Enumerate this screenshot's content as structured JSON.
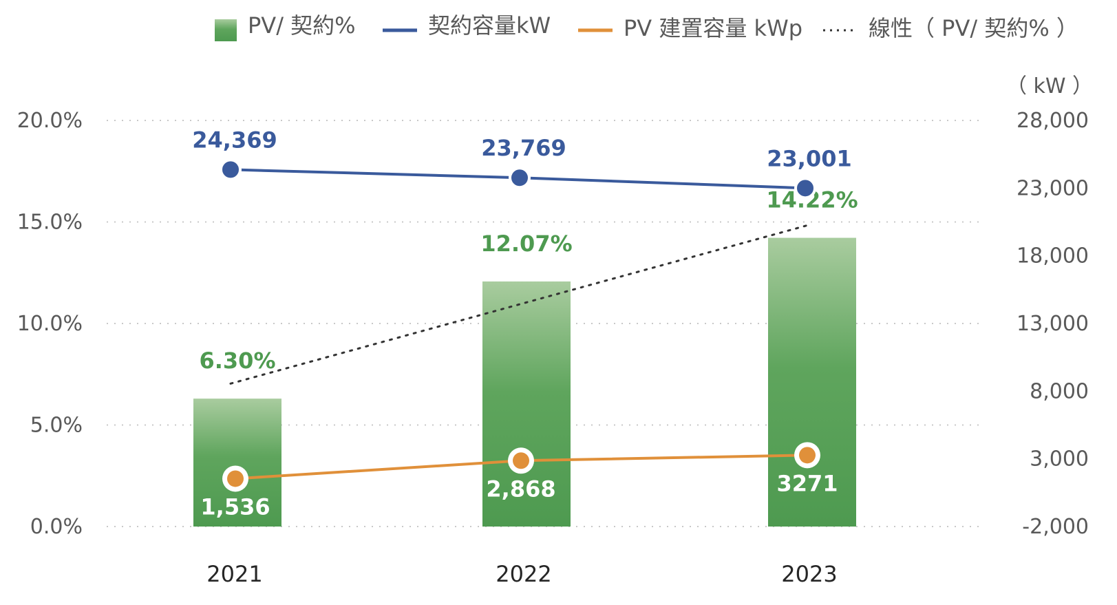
{
  "chart_data": {
    "type": "bar",
    "categories": [
      "2021",
      "2022",
      "2023"
    ],
    "series": [
      {
        "name": "PV/ 契約%",
        "kind": "bar",
        "axis": "left",
        "values": [
          6.3,
          12.07,
          14.22
        ],
        "labels": [
          "6.30%",
          "12.07%",
          "14.22%"
        ],
        "color": "#4e9a50"
      },
      {
        "name": "契約容量kW",
        "kind": "line",
        "axis": "right",
        "values": [
          24369,
          23769,
          23001
        ],
        "labels": [
          "24,369",
          "23,769",
          "23,001"
        ],
        "color": "#3a5a9c"
      },
      {
        "name": "PV 建置容量 kWp",
        "kind": "line",
        "axis": "right",
        "values": [
          1536,
          2868,
          3271
        ],
        "labels": [
          "1,536",
          "2,868",
          "3271"
        ],
        "color": "#e0903a"
      },
      {
        "name": "線性（ PV/ 契約% ）",
        "kind": "trendline",
        "axis": "left",
        "of_series": "PV/ 契約%",
        "color": "#333333"
      }
    ],
    "y_left": {
      "ticks": [
        0,
        5,
        10,
        15,
        20
      ],
      "tick_labels": [
        "0.0%",
        "5.0%",
        "10.0%",
        "15.0%",
        "20.0%"
      ],
      "lim": [
        0,
        20
      ]
    },
    "y_right": {
      "unit_label": "（ kW ）",
      "ticks": [
        -2000,
        3000,
        8000,
        13000,
        18000,
        23000,
        28000
      ],
      "tick_labels": [
        "-2,000",
        "3,000",
        "8,000",
        "13,000",
        "18,000",
        "23,000",
        "28,000"
      ],
      "lim": [
        -2000,
        28000
      ]
    },
    "legend_position": "top",
    "grid": true
  }
}
